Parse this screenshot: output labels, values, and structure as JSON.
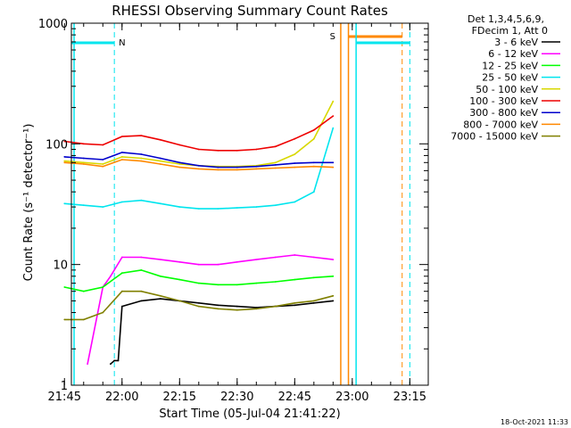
{
  "chart_data": {
    "type": "line",
    "title": "RHESSI Observing Summary Count Rates",
    "xlabel": "Start Time (05-Jul-04 21:41:22)",
    "ylabel": "Count Rate (s⁻¹ detector⁻¹)",
    "yscale": "log",
    "ylim": [
      1,
      1000
    ],
    "xlim_minutes": [
      21.78,
      23.33
    ],
    "x_ticks": [
      "21:45",
      "22:00",
      "22:15",
      "22:30",
      "22:45",
      "23:00",
      "23:15"
    ],
    "y_ticks": [
      "1",
      "10",
      "100",
      "1000"
    ],
    "legend_header": [
      "Det 1,3,4,5,6,9,",
      "FDecim 1, Att 0"
    ],
    "legend_position": "right",
    "timestamp": "18-Oct-2021 11:33",
    "markers": {
      "night_label": "N",
      "saa_label": "S"
    },
    "series": [
      {
        "name": "3 - 6 keV",
        "color": "#000000",
        "x": [
          "21:57",
          "21:58",
          "21:59",
          "22:00",
          "22:05",
          "22:10",
          "22:15",
          "22:20",
          "22:25",
          "22:30",
          "22:35",
          "22:40",
          "22:45",
          "22:50",
          "22:55"
        ],
        "values": [
          1.5,
          1.6,
          1.6,
          4.5,
          5.0,
          5.2,
          5.0,
          4.8,
          4.6,
          4.5,
          4.4,
          4.5,
          4.6,
          4.8,
          5.0
        ]
      },
      {
        "name": "6 - 12 keV",
        "color": "#ff00ff",
        "x": [
          "21:51",
          "21:55",
          "21:57",
          "22:00",
          "22:05",
          "22:10",
          "22:15",
          "22:20",
          "22:25",
          "22:30",
          "22:35",
          "22:40",
          "22:45",
          "22:50",
          "22:55"
        ],
        "values": [
          1.5,
          6.5,
          8.0,
          11.5,
          11.5,
          11.0,
          10.5,
          10.0,
          10.0,
          10.5,
          11.0,
          11.5,
          12.0,
          11.5,
          11.0
        ]
      },
      {
        "name": "12 - 25 keV",
        "color": "#00ff00",
        "x": [
          "21:45",
          "21:50",
          "21:55",
          "22:00",
          "22:05",
          "22:10",
          "22:15",
          "22:20",
          "22:25",
          "22:30",
          "22:35",
          "22:40",
          "22:45",
          "22:50",
          "22:55"
        ],
        "values": [
          6.5,
          6.0,
          6.5,
          8.5,
          9.0,
          8.0,
          7.5,
          7.0,
          6.8,
          6.8,
          7.0,
          7.2,
          7.5,
          7.8,
          8.0
        ]
      },
      {
        "name": "25 - 50 keV",
        "color": "#00e5ee",
        "x": [
          "21:45",
          "21:50",
          "21:55",
          "22:00",
          "22:05",
          "22:10",
          "22:15",
          "22:20",
          "22:25",
          "22:30",
          "22:35",
          "22:40",
          "22:45",
          "22:50",
          "22:55"
        ],
        "values": [
          32,
          31,
          30,
          33,
          34,
          32,
          30,
          29,
          29,
          29.5,
          30,
          31,
          33,
          40,
          135
        ]
      },
      {
        "name": "50 - 100 keV",
        "color": "#d8d800",
        "x": [
          "21:45",
          "21:50",
          "21:55",
          "22:00",
          "22:05",
          "22:10",
          "22:15",
          "22:20",
          "22:25",
          "22:30",
          "22:35",
          "22:40",
          "22:45",
          "22:50",
          "22:55"
        ],
        "values": [
          72,
          70,
          68,
          78,
          76,
          72,
          68,
          66,
          65,
          65,
          66,
          70,
          82,
          110,
          225
        ]
      },
      {
        "name": "100 - 300 keV",
        "color": "#ee0000",
        "x": [
          "21:45",
          "21:50",
          "21:55",
          "22:00",
          "22:05",
          "22:10",
          "22:15",
          "22:20",
          "22:25",
          "22:30",
          "22:35",
          "22:40",
          "22:45",
          "22:50",
          "22:55"
        ],
        "values": [
          105,
          100,
          98,
          115,
          117,
          108,
          98,
          90,
          88,
          88,
          90,
          95,
          110,
          130,
          170
        ]
      },
      {
        "name": "300 - 800 keV",
        "color": "#0000cc",
        "x": [
          "21:45",
          "21:50",
          "21:55",
          "22:00",
          "22:05",
          "22:10",
          "22:15",
          "22:20",
          "22:25",
          "22:30",
          "22:35",
          "22:40",
          "22:45",
          "22:50",
          "22:55"
        ],
        "values": [
          78,
          76,
          74,
          85,
          82,
          76,
          70,
          66,
          64,
          64,
          65,
          67,
          69,
          70,
          70
        ]
      },
      {
        "name": "800 - 7000 keV",
        "color": "#ff8800",
        "x": [
          "21:45",
          "21:50",
          "21:55",
          "22:00",
          "22:05",
          "22:10",
          "22:15",
          "22:20",
          "22:25",
          "22:30",
          "22:35",
          "22:40",
          "22:45",
          "22:50",
          "22:55"
        ],
        "values": [
          70,
          68,
          65,
          74,
          72,
          68,
          64,
          62,
          61,
          61,
          62,
          63,
          64,
          65,
          64
        ]
      },
      {
        "name": "7000 - 15000 keV",
        "color": "#808000",
        "x": [
          "21:45",
          "21:50",
          "21:55",
          "22:00",
          "22:05",
          "22:10",
          "22:15",
          "22:20",
          "22:25",
          "22:30",
          "22:35",
          "22:40",
          "22:45",
          "22:50",
          "22:55"
        ],
        "values": [
          3.5,
          3.5,
          4.0,
          6.0,
          6.0,
          5.5,
          5.0,
          4.5,
          4.3,
          4.2,
          4.3,
          4.5,
          4.8,
          5.0,
          5.5
        ]
      }
    ]
  }
}
